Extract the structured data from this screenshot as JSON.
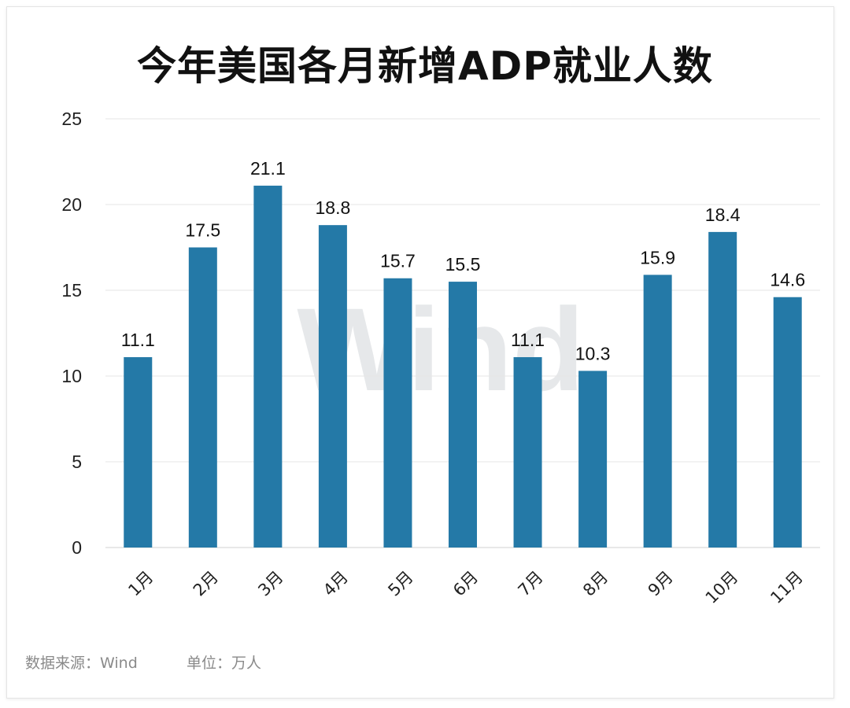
{
  "title": "今年美国各月新增ADP就业人数",
  "watermark": "Wind",
  "source": "数据来源：Wind",
  "unit": "单位：万人",
  "colors": {
    "bar": "#2479a7",
    "grid": "#e6e6e6"
  },
  "chart_data": {
    "type": "bar",
    "title": "今年美国各月新增ADP就业人数",
    "categories": [
      "1月",
      "2月",
      "3月",
      "4月",
      "5月",
      "6月",
      "7月",
      "8月",
      "9月",
      "10月",
      "11月"
    ],
    "values": [
      11.1,
      17.5,
      21.1,
      18.8,
      15.7,
      15.5,
      11.1,
      10.3,
      15.9,
      18.4,
      14.6
    ],
    "data_labels": [
      "11.1",
      "17.5",
      "21.1",
      "18.8",
      "15.7",
      "15.5",
      "11.1",
      "10.3",
      "15.9",
      "18.4",
      "14.6"
    ],
    "yticks": [
      "0",
      "5",
      "10",
      "15",
      "20",
      "25"
    ],
    "ylim": [
      0,
      25
    ],
    "xlabel": "",
    "ylabel": "",
    "grid": true,
    "legend": "none"
  }
}
